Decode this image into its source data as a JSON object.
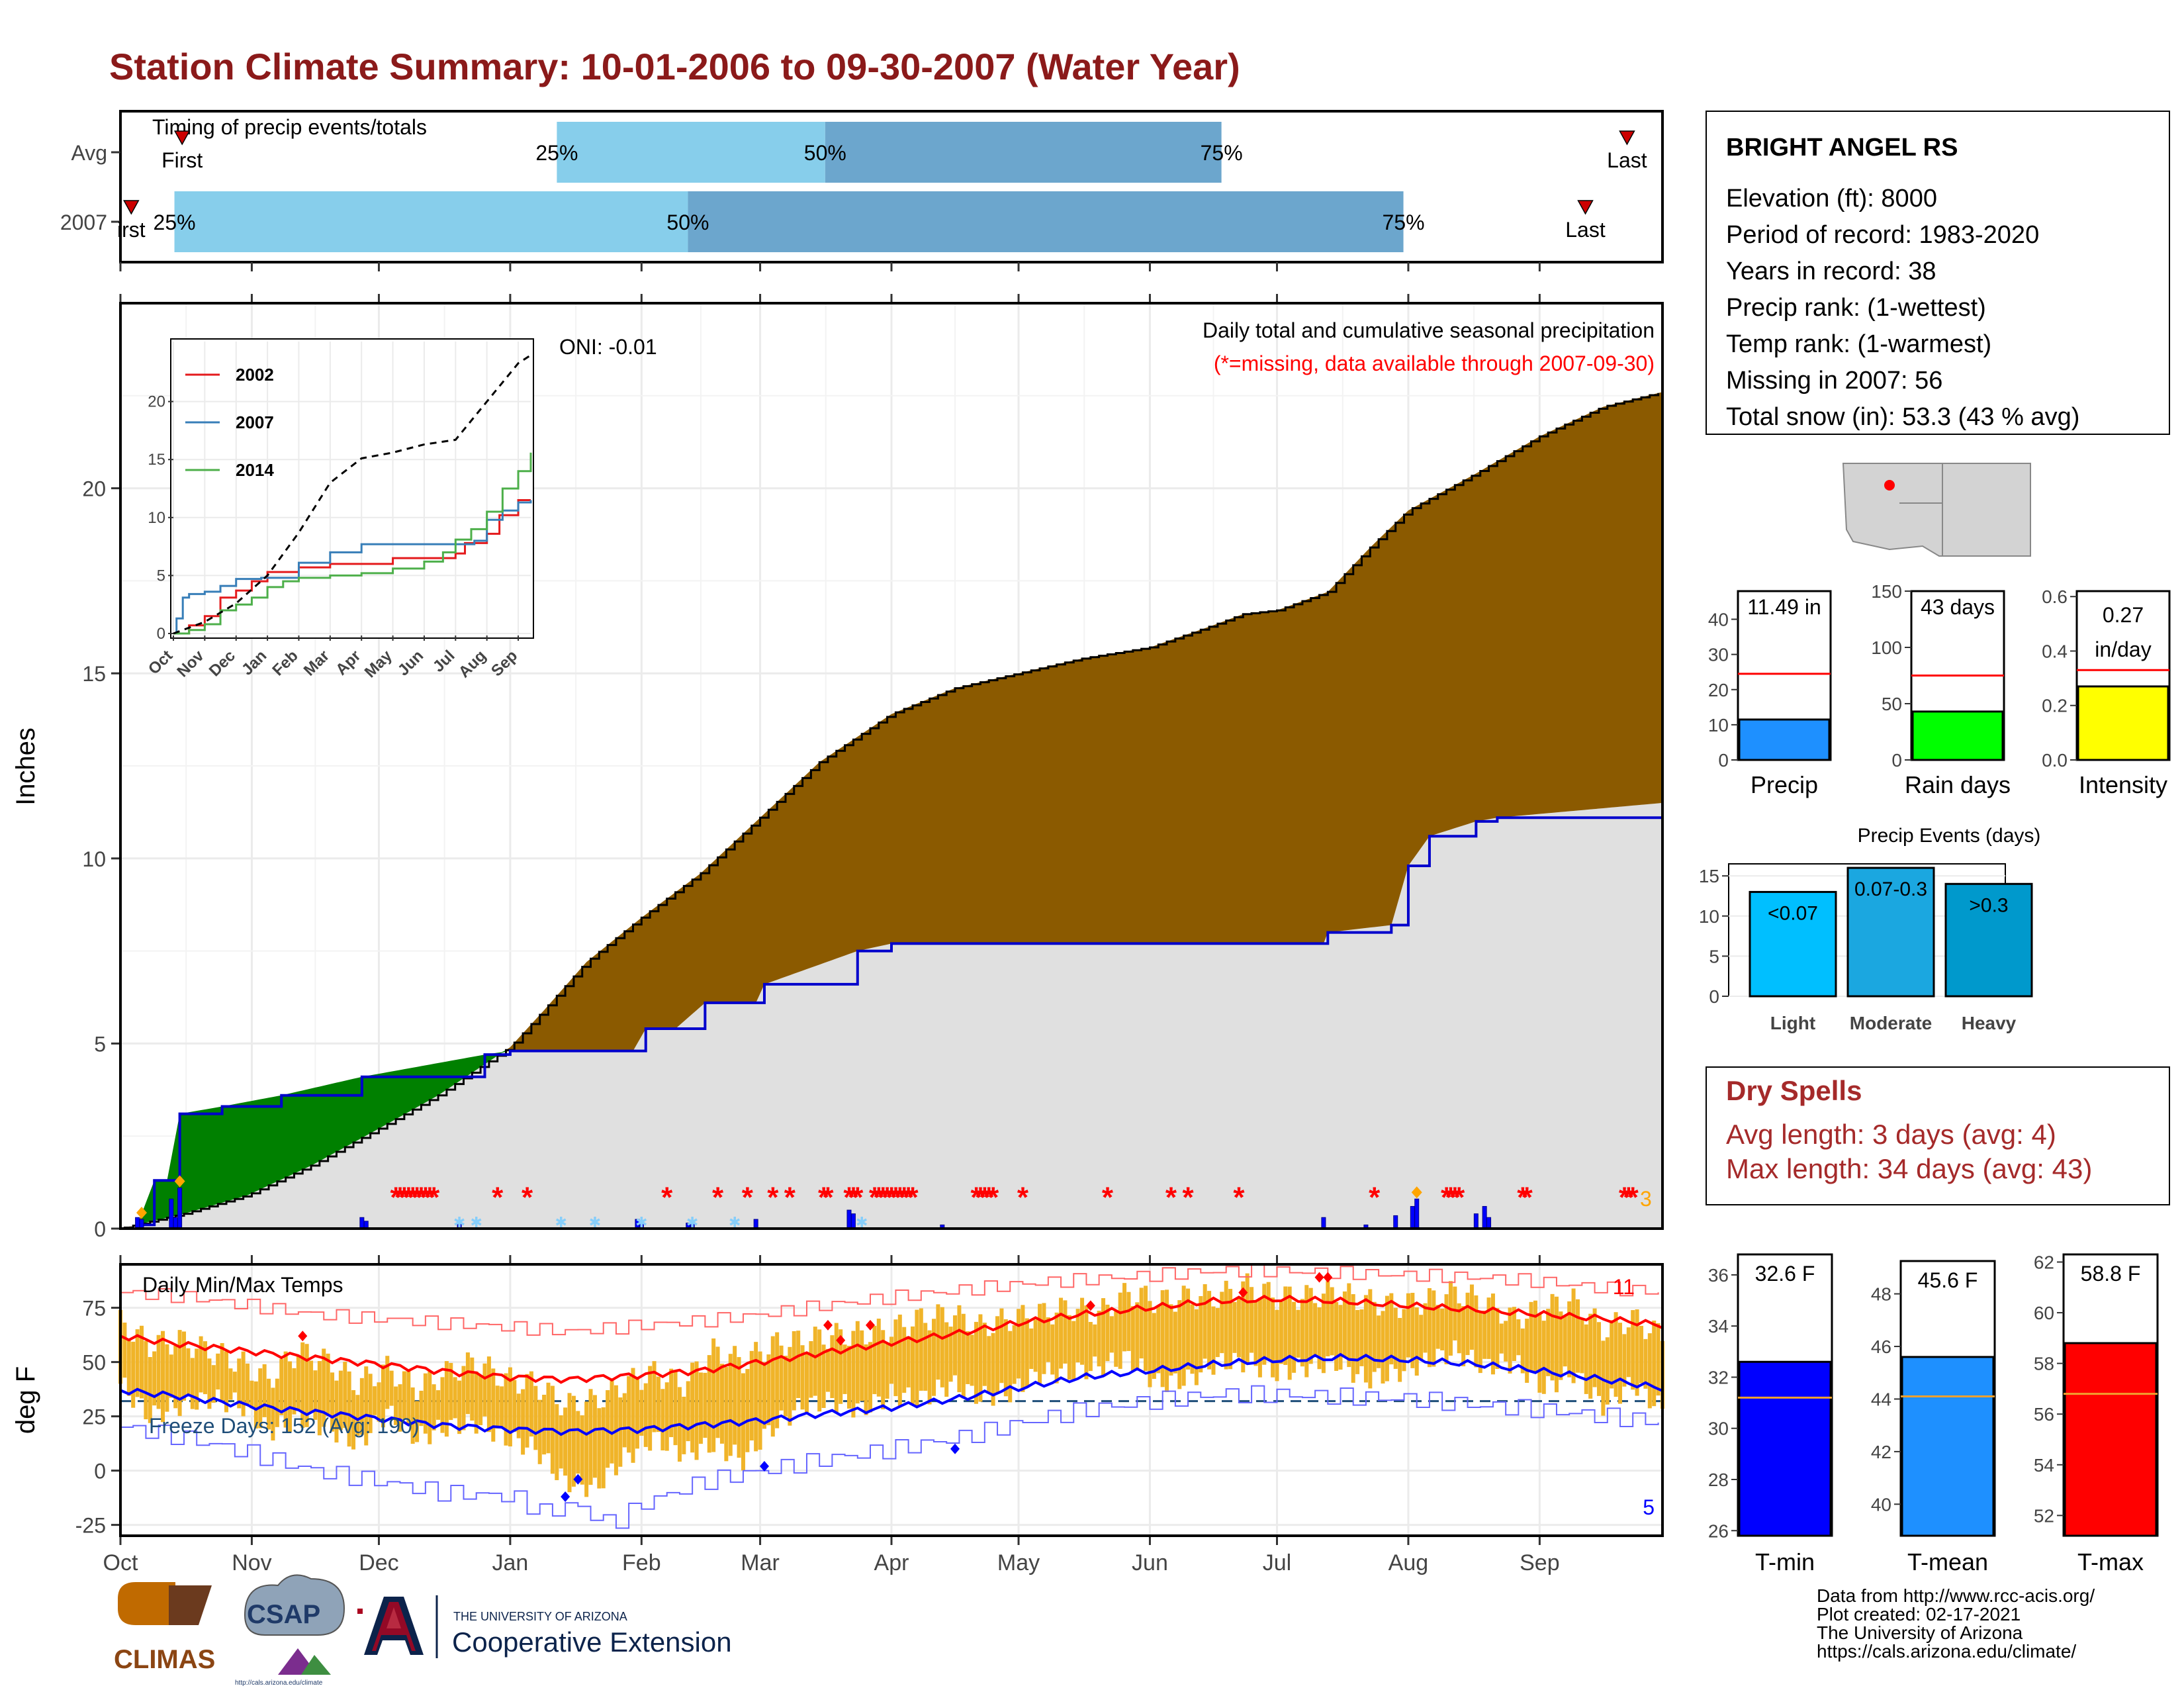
{
  "page": {
    "title": "Station Climate Summary: 10-01-2006 to 09-30-2007 (Water Year)"
  },
  "timing": {
    "title": "Timing of precip events/totals",
    "rows": [
      {
        "label": "Avg",
        "first_label": "First",
        "last_label": "Last",
        "first": 0.04,
        "last": 0.977,
        "p25": 0.283,
        "p50": 0.457,
        "p75": 0.714
      },
      {
        "label": "2007",
        "first_label": "irst",
        "last_label": "Last",
        "first": 0.007,
        "last": 0.95,
        "p25": 0.035,
        "p50": 0.368,
        "p75": 0.832
      }
    ],
    "pct_labels": [
      "25%",
      "50%",
      "75%"
    ],
    "colors": {
      "light": "#87CEEB",
      "dark": "#6CA6CD",
      "marker": "#CC0000"
    }
  },
  "months": [
    "Oct",
    "Nov",
    "Dec",
    "Jan",
    "Feb",
    "Mar",
    "Apr",
    "May",
    "Jun",
    "Jul",
    "Aug",
    "Sep"
  ],
  "month_starts": [
    0,
    31,
    61,
    92,
    123,
    151,
    182,
    212,
    243,
    273,
    304,
    335
  ],
  "year_days": 365,
  "chart_data": [
    {
      "type": "area",
      "title": "Daily total and cumulative seasonal precipitation",
      "subtitle": "(*=missing, data available through 2007-09-30)",
      "ylabel": "Inches",
      "ylim": [
        0,
        25
      ],
      "yticks": [
        0,
        5,
        10,
        15,
        20
      ],
      "oni_label": "ONI: -0.01",
      "missing_count_label": "3",
      "series": [
        {
          "name": "",
          "role": "avg-cumulative",
          "x": [
            0,
            15,
            30,
            45,
            61,
            75,
            92,
            100,
            110,
            123,
            137,
            151,
            165,
            182,
            197,
            212,
            227,
            243,
            258,
            265,
            273,
            285,
            295,
            304,
            320,
            335,
            350,
            364
          ],
          "values": [
            0.0,
            0.4,
            0.9,
            1.7,
            2.7,
            3.6,
            4.9,
            5.9,
            7.2,
            8.4,
            9.6,
            11.1,
            12.6,
            13.9,
            14.6,
            15.0,
            15.4,
            15.7,
            16.3,
            16.6,
            16.7,
            17.2,
            18.4,
            19.4,
            20.4,
            21.4,
            22.2,
            22.6
          ]
        },
        {
          "name": "",
          "role": "2007-cumulative",
          "x": [
            0,
            4,
            8,
            11,
            14,
            24,
            38,
            57,
            86,
            92,
            100,
            121,
            124,
            131,
            138,
            150,
            152,
            174,
            182,
            205,
            225,
            250,
            260,
            284,
            285,
            300,
            304,
            309,
            320,
            325,
            364
          ],
          "values": [
            0.0,
            0.1,
            1.3,
            1.3,
            3.1,
            3.3,
            3.6,
            4.1,
            4.7,
            4.8,
            4.8,
            4.8,
            5.4,
            5.4,
            6.1,
            6.1,
            6.6,
            7.5,
            7.7,
            7.7,
            7.7,
            7.7,
            7.7,
            7.7,
            8.0,
            8.2,
            9.8,
            10.6,
            11.0,
            11.1,
            11.5
          ]
        }
      ],
      "daily_bars": [
        {
          "x": 4,
          "v": 0.3
        },
        {
          "x": 5,
          "v": 0.25
        },
        {
          "x": 12,
          "v": 0.8
        },
        {
          "x": 13,
          "v": 0.3
        },
        {
          "x": 14,
          "v": 1.1
        },
        {
          "x": 57,
          "v": 0.3
        },
        {
          "x": 58,
          "v": 0.2
        },
        {
          "x": 80,
          "v": 0.15
        },
        {
          "x": 122,
          "v": 0.25
        },
        {
          "x": 123,
          "v": 0.15
        },
        {
          "x": 134,
          "v": 0.15
        },
        {
          "x": 135,
          "v": 0.15
        },
        {
          "x": 150,
          "v": 0.25
        },
        {
          "x": 172,
          "v": 0.5
        },
        {
          "x": 173,
          "v": 0.4
        },
        {
          "x": 194,
          "v": 0.1
        },
        {
          "x": 284,
          "v": 0.3
        },
        {
          "x": 294,
          "v": 0.1
        },
        {
          "x": 301,
          "v": 0.35
        },
        {
          "x": 305,
          "v": 0.6
        },
        {
          "x": 306,
          "v": 0.8
        },
        {
          "x": 320,
          "v": 0.4
        },
        {
          "x": 322,
          "v": 0.6
        },
        {
          "x": 323,
          "v": 0.3
        }
      ],
      "snow_x": [
        80,
        84,
        104,
        112,
        123,
        135,
        145,
        175
      ],
      "missing_x": [
        65,
        66,
        67,
        68,
        69,
        70,
        71,
        72,
        73,
        74,
        89,
        96,
        129,
        141,
        148,
        154,
        158,
        166,
        167,
        172,
        173,
        174,
        178,
        179,
        180,
        181,
        182,
        183,
        184,
        185,
        186,
        187,
        202,
        203,
        204,
        205,
        206,
        213,
        233,
        248,
        252,
        264,
        296,
        313,
        314,
        315,
        316,
        331,
        332,
        355,
        356,
        357
      ],
      "markers_x": [
        5,
        14,
        306
      ],
      "colors": {
        "deficit": "#8B5A00",
        "surplus": "#008000",
        "base": "#E0E0E0",
        "line": "#0000CC",
        "bars": "#0000FF",
        "missing": "#FF0000",
        "snow": "#87CEFA",
        "marker": "#FFA500"
      }
    },
    {
      "type": "line",
      "title": "",
      "x_labels": [
        "Oct",
        "Nov",
        "Dec",
        "Jan",
        "Feb",
        "Mar",
        "Apr",
        "May",
        "Jun",
        "Jul",
        "Aug",
        "Sep"
      ],
      "ylim": [
        0,
        25
      ],
      "yticks": [
        0,
        5,
        10,
        15,
        20
      ],
      "series": [
        {
          "name": "2002",
          "color": "#E41A1C",
          "x": [
            0,
            0.5,
            1,
            1.5,
            2,
            2.5,
            3,
            4,
            5,
            6,
            7,
            8,
            9,
            9.3,
            9.6,
            10,
            10.4,
            10.7,
            11,
            11.4
          ],
          "values": [
            0,
            0.7,
            1.5,
            3.1,
            3.7,
            4.5,
            5.3,
            5.7,
            6.0,
            6.0,
            6.5,
            6.5,
            6.9,
            7.8,
            7.8,
            8.6,
            10.2,
            10.2,
            11.5,
            11.5
          ]
        },
        {
          "name": "2007",
          "color": "#377EB8",
          "x": [
            0,
            0.1,
            0.3,
            0.5,
            1,
            1.5,
            2,
            2.8,
            3,
            4,
            5,
            6,
            7,
            8,
            9,
            9.6,
            10,
            10.5,
            11,
            11.4
          ],
          "values": [
            0,
            1.3,
            3.1,
            3.4,
            3.6,
            4.1,
            4.7,
            4.8,
            4.8,
            6.1,
            7.0,
            7.7,
            7.7,
            7.7,
            7.7,
            8.0,
            9.8,
            10.6,
            11.3,
            11.5
          ]
        },
        {
          "name": "2014",
          "color": "#4DAF4A",
          "x": [
            0,
            0.5,
            1,
            1.5,
            2,
            2.5,
            3,
            3.5,
            4,
            5,
            6,
            7,
            8,
            8.6,
            9,
            9.5,
            10,
            10.5,
            11,
            11.4
          ],
          "values": [
            0,
            0.3,
            0.8,
            2.0,
            2.5,
            3.1,
            4.0,
            4.5,
            4.8,
            5.0,
            5.2,
            5.6,
            6.2,
            7.0,
            8.1,
            9.0,
            10.5,
            12.5,
            14.0,
            15.6
          ]
        },
        {
          "name": "",
          "color": "#000000",
          "dashed": true,
          "x": [
            0,
            1,
            2,
            3,
            4,
            5,
            6,
            7,
            8,
            9,
            10,
            11,
            11.4
          ],
          "values": [
            0,
            1.0,
            2.6,
            5.0,
            8.7,
            13.0,
            15.1,
            15.6,
            16.3,
            16.7,
            20.0,
            23.3,
            24.0
          ]
        }
      ]
    },
    {
      "type": "line",
      "title": "Daily Min/Max Temps",
      "ylabel": "deg F",
      "ylim": [
        -30,
        95
      ],
      "yticks": [
        -25,
        0,
        25,
        50,
        75
      ],
      "freeze_label": "Freeze Days: 152 (Avg: 190)",
      "freeze_line": 32,
      "record_high_count": "11",
      "record_low_count": "5",
      "avg_max": {
        "x": [
          0,
          15,
          30,
          45,
          61,
          75,
          92,
          106,
          123,
          137,
          151,
          165,
          182,
          197,
          212,
          227,
          243,
          258,
          273,
          288,
          304,
          320,
          335,
          350,
          364
        ],
        "values": [
          62,
          58,
          55,
          52,
          49,
          46,
          43,
          42,
          44,
          46,
          50,
          54,
          59,
          63,
          68,
          72,
          75,
          78,
          79,
          78,
          76,
          74,
          72,
          70,
          67
        ]
      },
      "avg_min": {
        "x": [
          0,
          15,
          30,
          45,
          61,
          75,
          92,
          106,
          123,
          137,
          151,
          165,
          182,
          197,
          212,
          227,
          243,
          258,
          273,
          288,
          304,
          320,
          335,
          350,
          364
        ],
        "values": [
          37,
          34,
          30,
          27,
          24,
          21,
          19,
          18,
          19,
          21,
          23,
          26,
          29,
          33,
          38,
          43,
          46,
          49,
          51,
          52,
          51,
          49,
          46,
          42,
          38
        ]
      },
      "record_high": {
        "x": [
          0,
          15,
          30,
          45,
          61,
          75,
          92,
          106,
          123,
          137,
          151,
          165,
          182,
          197,
          212,
          227,
          243,
          258,
          273,
          288,
          304,
          320,
          335,
          350,
          364
        ],
        "values": [
          82,
          80,
          76,
          72,
          70,
          68,
          66,
          64,
          67,
          69,
          72,
          76,
          80,
          83,
          86,
          88,
          90,
          92,
          92,
          91,
          90,
          89,
          87,
          84,
          82
        ]
      },
      "record_low": {
        "x": [
          0,
          15,
          30,
          45,
          61,
          75,
          92,
          100,
          106,
          115,
          123,
          137,
          151,
          165,
          182,
          197,
          212,
          227,
          243,
          258,
          273,
          288,
          304,
          320,
          335,
          350,
          364
        ],
        "values": [
          20,
          15,
          8,
          0,
          -5,
          -10,
          -12,
          -20,
          -15,
          -25,
          -15,
          -5,
          0,
          5,
          10,
          15,
          22,
          28,
          32,
          35,
          35,
          34,
          33,
          30,
          28,
          25,
          22
        ]
      },
      "daily_x": [
        0,
        7,
        14,
        21,
        28,
        35,
        42,
        49,
        56,
        63,
        70,
        77,
        84,
        91,
        98,
        105,
        112,
        119,
        126,
        133,
        140,
        147,
        154,
        161,
        168,
        175,
        182,
        189,
        196,
        203,
        210,
        217,
        224,
        231,
        238,
        245,
        252,
        259,
        266,
        273,
        280,
        287,
        294,
        301,
        308,
        315,
        322,
        329,
        336,
        343,
        350,
        357,
        364
      ],
      "daily_min": [
        40,
        25,
        30,
        33,
        31,
        18,
        24,
        20,
        12,
        27,
        15,
        20,
        22,
        15,
        10,
        -5,
        -8,
        6,
        15,
        8,
        12,
        5,
        20,
        30,
        32,
        28,
        35,
        33,
        40,
        34,
        36,
        45,
        45,
        48,
        52,
        40,
        42,
        50,
        50,
        45,
        48,
        50,
        42,
        45,
        50,
        55,
        48,
        50,
        38,
        45,
        30,
        40,
        28
      ],
      "daily_max": [
        68,
        58,
        60,
        55,
        50,
        42,
        55,
        50,
        40,
        47,
        38,
        45,
        50,
        42,
        40,
        30,
        32,
        40,
        45,
        40,
        55,
        50,
        58,
        60,
        62,
        63,
        65,
        70,
        72,
        66,
        70,
        72,
        75,
        72,
        82,
        78,
        80,
        80,
        85,
        80,
        80,
        82,
        78,
        76,
        78,
        82,
        78,
        70,
        75,
        78,
        65,
        70,
        62
      ],
      "colors": {
        "band": "#F0B429",
        "avg_max": "#FF0000",
        "avg_min": "#0000FF",
        "record_high": "#FF6666",
        "record_low": "#6666FF",
        "freeze": "#1F4E79"
      }
    },
    {
      "type": "bar",
      "title": "",
      "categories": [
        "Precip",
        "Rain days",
        "Intensity"
      ],
      "values": [
        11.49,
        43,
        0.27
      ],
      "averages": [
        24.5,
        75,
        0.33
      ],
      "ylims": [
        [
          0,
          48
        ],
        [
          0,
          150
        ],
        [
          0,
          0.62
        ]
      ],
      "yticks": [
        [
          0,
          10,
          20,
          30,
          40
        ],
        [
          0,
          50,
          100,
          150
        ],
        [
          0.0,
          0.2,
          0.4,
          0.6
        ]
      ],
      "ytick_labels": [
        [
          "0",
          "10",
          "20",
          "30",
          "40"
        ],
        [
          "0",
          "50",
          "100",
          "150"
        ],
        [
          "0.0",
          "0.2",
          "0.4",
          "0.6"
        ]
      ],
      "value_labels": [
        [
          "11.49 in"
        ],
        [
          "43 days"
        ],
        [
          "0.27",
          "in/day"
        ]
      ],
      "colors": [
        "#1E90FF",
        "#00FF00",
        "#FFFF00"
      ]
    },
    {
      "type": "bar",
      "title": "Precip Events (days)",
      "categories": [
        "Light",
        "Moderate",
        "Heavy"
      ],
      "values": [
        13,
        16,
        14
      ],
      "value_labels": [
        "<0.07",
        "0.07-0.3",
        ">0.3"
      ],
      "ylim": [
        0,
        16.5
      ],
      "yticks": [
        0,
        5,
        10,
        15
      ],
      "colors": [
        "#00BFFF",
        "#1BA7E0",
        "#0099CC"
      ]
    },
    {
      "type": "bar",
      "title": "",
      "categories": [
        "T-min",
        "T-mean",
        "T-max"
      ],
      "values": [
        32.6,
        45.6,
        58.8
      ],
      "averages": [
        31.2,
        44.1,
        56.8
      ],
      "value_labels": [
        "32.6 F",
        "45.6 F",
        "58.8 F"
      ],
      "ylims": [
        [
          25.8,
          36.8
        ],
        [
          38.8,
          49.5
        ],
        [
          51.2,
          62.3
        ]
      ],
      "yticks": [
        [
          26,
          28,
          30,
          32,
          34,
          36
        ],
        [
          40,
          42,
          44,
          46,
          48
        ],
        [
          52,
          54,
          56,
          58,
          60,
          62
        ]
      ],
      "colors": [
        "#0000FF",
        "#1E90FF",
        "#FF0000"
      ]
    }
  ],
  "station": {
    "name": "BRIGHT ANGEL RS",
    "lines": [
      "Elevation (ft): 8000",
      "Period of record: 1983-2020",
      "Years in record: 38",
      "Precip rank:  (1-wettest)",
      "Temp rank:  (1-warmest)",
      "Missing in 2007: 56",
      "Total snow (in): 53.3 (43 % avg)"
    ]
  },
  "dry_spells": {
    "title": "Dry Spells",
    "avg": "Avg length: 3 days (avg: 4)",
    "max": "Max length: 34 days (avg: 43)",
    "color": "#A52A2A"
  },
  "credits": [
    "Data from http://www.rcc-acis.org/",
    "Plot created: 02-17-2021",
    "The University of Arizona",
    "https://cals.arizona.edu/climate/"
  ],
  "logos": {
    "climas": "CLIMAS",
    "csap": "CSAP",
    "csap_url": "http://cals.arizona.edu/climate",
    "ua_small": "THE UNIVERSITY OF ARIZONA",
    "ua_big": "Cooperative Extension"
  }
}
